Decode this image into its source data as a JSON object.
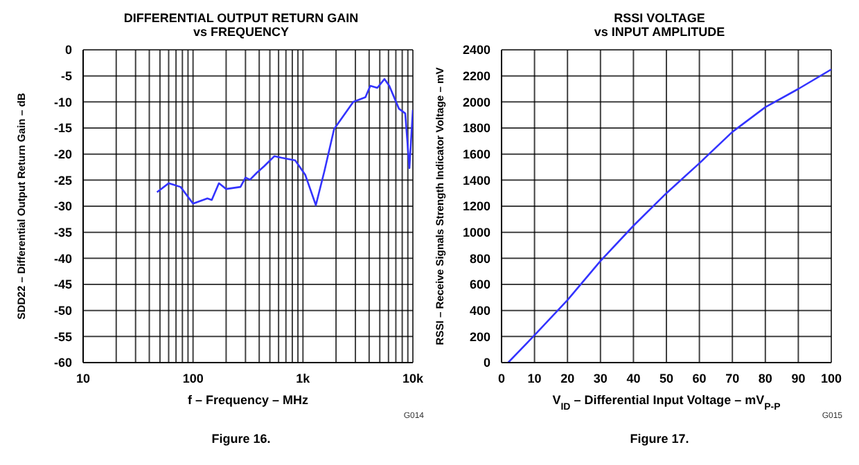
{
  "chart_data": [
    {
      "type": "line",
      "title": "DIFFERENTIAL OUTPUT RETURN GAIN",
      "subtitle": "vs FREQUENCY",
      "xlabel": "f – Frequency – MHz",
      "ylabel": "SDD22 – Differential Output Return Gain – dB",
      "annotations": [
        "G014",
        "Figure 16."
      ],
      "log": "x",
      "grid": true,
      "marker": "none",
      "line_style": "solid",
      "xlim": [
        10,
        10000
      ],
      "xticks": [
        {
          "value": 10,
          "label": "10"
        },
        {
          "value": 20,
          "label": null
        },
        {
          "value": 30,
          "label": null
        },
        {
          "value": 40,
          "label": null
        },
        {
          "value": 50,
          "label": null
        },
        {
          "value": 60,
          "label": null
        },
        {
          "value": 70,
          "label": null
        },
        {
          "value": 80,
          "label": null
        },
        {
          "value": 90,
          "label": null
        },
        {
          "value": 100,
          "label": "100"
        },
        {
          "value": 200,
          "label": null
        },
        {
          "value": 300,
          "label": null
        },
        {
          "value": 400,
          "label": null
        },
        {
          "value": 500,
          "label": null
        },
        {
          "value": 600,
          "label": null
        },
        {
          "value": 700,
          "label": null
        },
        {
          "value": 800,
          "label": null
        },
        {
          "value": 900,
          "label": null
        },
        {
          "value": 1000,
          "label": "1k"
        },
        {
          "value": 2000,
          "label": null
        },
        {
          "value": 3000,
          "label": null
        },
        {
          "value": 4000,
          "label": null
        },
        {
          "value": 5000,
          "label": null
        },
        {
          "value": 6000,
          "label": null
        },
        {
          "value": 7000,
          "label": null
        },
        {
          "value": 8000,
          "label": null
        },
        {
          "value": 9000,
          "label": null
        },
        {
          "value": 10000,
          "label": "10k"
        }
      ],
      "ylim": [
        -60,
        0
      ],
      "yticks": [
        -60,
        -55,
        -50,
        -45,
        -40,
        -35,
        -30,
        -25,
        -20,
        -15,
        -10,
        -5,
        0
      ],
      "series": [
        {
          "color": "#3333ff",
          "x": [
            47,
            60,
            77,
            100,
            135,
            148,
            172,
            200,
            270,
            300,
            330,
            380,
            445,
            550,
            640,
            850,
            1050,
            1310,
            1570,
            1920,
            2870,
            3700,
            4100,
            4750,
            5520,
            6100,
            7470,
            8520,
            9300,
            10000
          ],
          "values": [
            -27.3,
            -25.6,
            -26.3,
            -29.5,
            -28.5,
            -28.8,
            -25.6,
            -26.7,
            -26.3,
            -24.5,
            -24.9,
            -23.6,
            -22.3,
            -20.4,
            -20.7,
            -21.2,
            -24,
            -29.8,
            -23.2,
            -15.2,
            -10,
            -9.1,
            -6.9,
            -7.3,
            -5.6,
            -6.9,
            -11.3,
            -12.2,
            -22.7,
            -11.5
          ]
        }
      ]
    },
    {
      "type": "line",
      "title": "RSSI VOLTAGE",
      "subtitle": "vs INPUT AMPLITUDE",
      "xlabel": "V$_{ID}$ – Differential Input Voltage – mV$_{P-P}$",
      "ylabel": "RSSI – Receive Signals Strength Indicator Voltage – mV",
      "annotations": [
        "G015",
        "Figure 17."
      ],
      "grid": true,
      "marker": "none",
      "line_style": "solid",
      "xlim": [
        0,
        100
      ],
      "xticks": [
        0,
        10,
        20,
        30,
        40,
        50,
        60,
        70,
        80,
        90,
        100
      ],
      "ylim": [
        0,
        2400
      ],
      "yticks": [
        0,
        200,
        400,
        600,
        800,
        1000,
        1200,
        1400,
        1600,
        1800,
        2000,
        2200,
        2400
      ],
      "series": [
        {
          "color": "#3333ff",
          "x": [
            2,
            10,
            20,
            30,
            40,
            50,
            60,
            70,
            80,
            90,
            100
          ],
          "values": [
            0,
            210,
            480,
            780,
            1050,
            1300,
            1530,
            1770,
            1960,
            2100,
            2250
          ]
        }
      ]
    }
  ]
}
